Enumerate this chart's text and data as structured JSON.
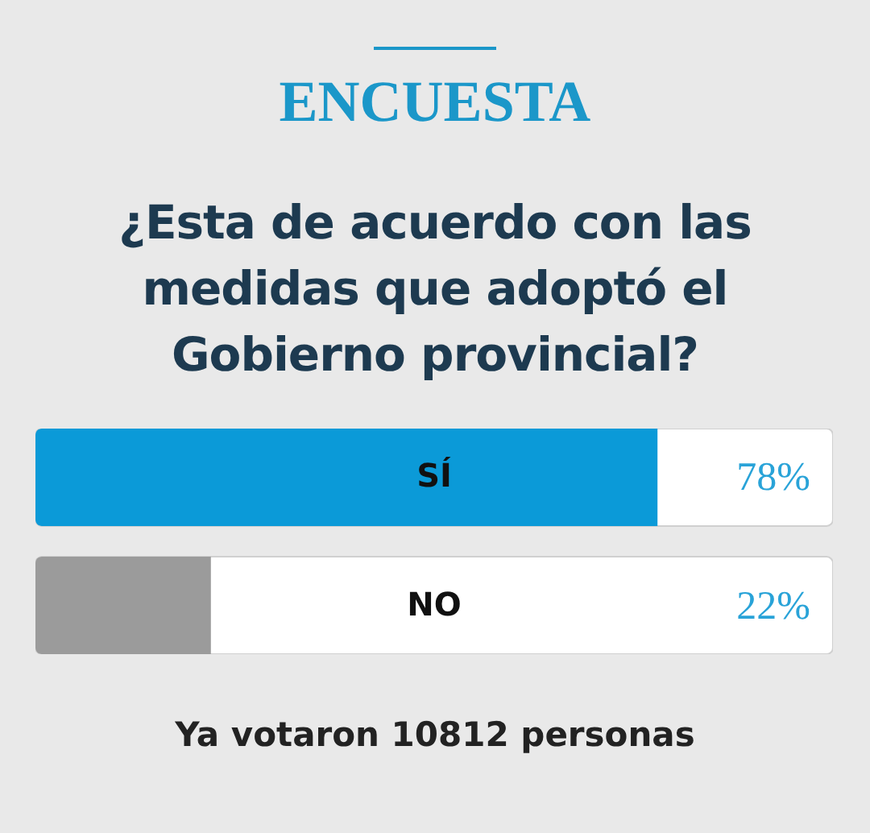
{
  "chart_data": {
    "type": "bar",
    "orientation": "horizontal",
    "title": "ENCUESTA",
    "subtitle": "¿Esta de acuerdo con las medidas que adoptó el Gobierno provincial?",
    "categories": [
      "SÍ",
      "NO"
    ],
    "values": [
      78,
      22
    ],
    "colors": [
      "#0b9ad8",
      "#9b9b9b"
    ],
    "value_labels": [
      "78%",
      "22%"
    ],
    "xlim": [
      0,
      100
    ],
    "annotations": [
      "Ya votaron 10812 personas"
    ]
  }
}
